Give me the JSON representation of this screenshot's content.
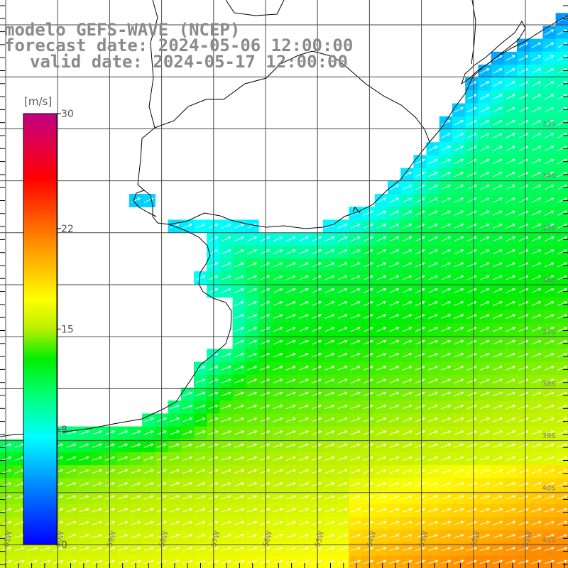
{
  "title": {
    "model": "modelo GEFS-WAVE (NCEP)",
    "forecast": "forecast date: 2024-05-06 12:00:00",
    "valid": "valid date: 2024-05-17 12:00:00"
  },
  "colorbar": {
    "unit": "[m/s]",
    "ticks": [
      "30",
      "22",
      "15",
      "8",
      "0"
    ],
    "range": [
      0,
      30
    ]
  },
  "map": {
    "lon_labels": [
      "61W",
      "60W",
      "59W",
      "58W",
      "57W",
      "56W",
      "55W",
      "54W",
      "53W",
      "52W",
      "51W"
    ],
    "lat_labels": [
      "33S",
      "34S",
      "35S",
      "36S",
      "37S",
      "38S",
      "39S",
      "40S",
      "41S"
    ],
    "field": "wind speed with direction arrows",
    "colors": {
      "low": "#0000ff",
      "mid": "#00ee00",
      "high": "#ff0000",
      "max": "#c00080",
      "arrow": "#ffffff",
      "grid": "#4a4a4a"
    }
  }
}
